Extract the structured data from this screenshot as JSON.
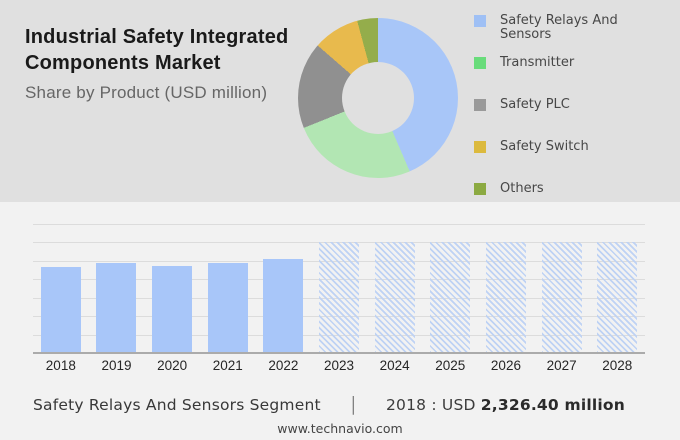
{
  "header": {
    "title_line1": "Industrial Safety Integrated",
    "title_line2": "Components Market",
    "subtitle": "Share by Product (USD million)"
  },
  "footer": {
    "segment_label": "Safety Relays And Sensors Segment",
    "separator": "|",
    "stat_prefix": "2018 : USD",
    "stat_value": "2,326.40 million",
    "website": "www.technavio.com"
  },
  "colors": {
    "header_bg": "#e0e0e0",
    "body_bg": "#f2f2f2",
    "bar_fill": "#a8c6f9",
    "hatch_line": "#bed2f4",
    "gridline": "#dcdcdc",
    "axis_line": "#ababab"
  },
  "chart_data": [
    {
      "type": "pie",
      "subtype": "donut",
      "title": "Share by Product (USD million)",
      "labels": [
        "Safety Relays And Sensors",
        "Transmitter",
        "Safety PLC",
        "Safety Switch",
        "Others"
      ],
      "values_pct": [
        43.5,
        25.4,
        17.5,
        9.4,
        4.2
      ],
      "slice_colors": [
        "#a8c6f8",
        "#b2e6b3",
        "#909090",
        "#e8ba4d",
        "#94ad4b"
      ],
      "legend_colors": [
        "#9fc0f5",
        "#69dc7b",
        "#9a9a9a",
        "#dcba3e",
        "#8caa42"
      ],
      "legend_position": "right"
    },
    {
      "type": "bar",
      "categories": [
        "2018",
        "2019",
        "2020",
        "2021",
        "2022",
        "2023",
        "2024",
        "2025",
        "2026",
        "2027",
        "2028"
      ],
      "series": [
        {
          "name": "Historical market size (USD million)",
          "values": [
            2326.4,
            2430,
            2350,
            2440,
            2540,
            null,
            null,
            null,
            null,
            null,
            null
          ],
          "style": "solid"
        },
        {
          "name": "Forecast period placeholder",
          "values": [
            null,
            null,
            null,
            null,
            null,
            3000,
            3000,
            3000,
            3000,
            3000,
            3000
          ],
          "style": "hatched"
        }
      ],
      "ylim": [
        0,
        3500
      ],
      "grid_step": 500,
      "grid": true,
      "xlabel": "",
      "ylabel": "",
      "annotation": "2018 : USD 2,326.40 million"
    }
  ]
}
